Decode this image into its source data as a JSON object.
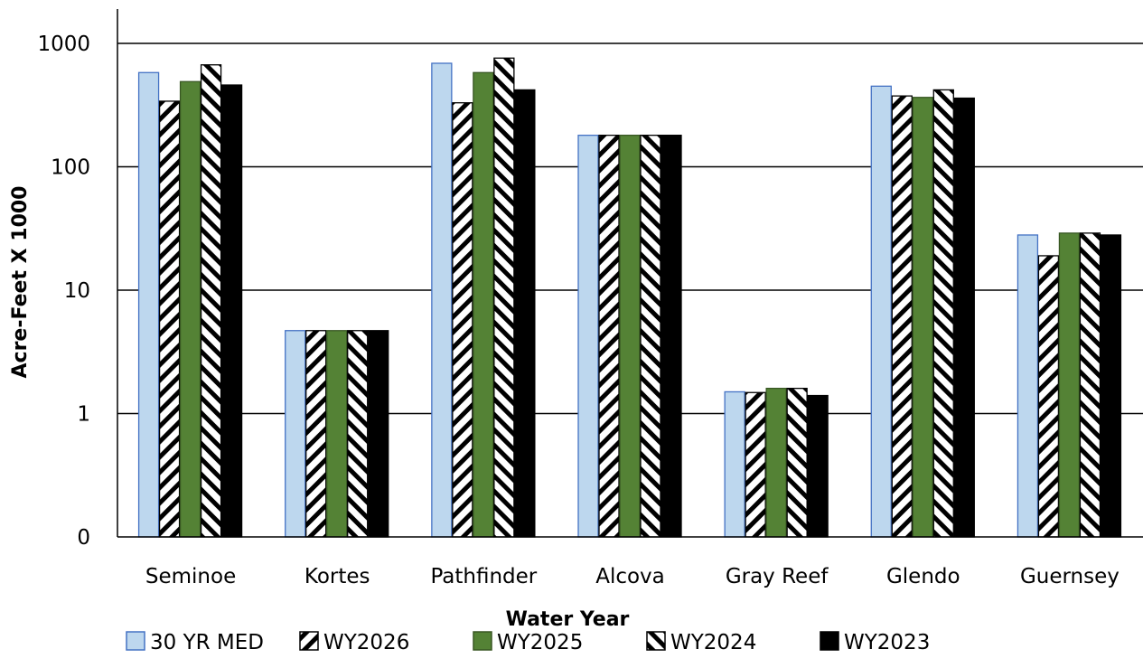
{
  "chart_data": {
    "type": "bar",
    "title": "",
    "xlabel": "Water Year",
    "ylabel": "Acre-Feet X 1000",
    "yscale": "log",
    "ylim": [
      0.1,
      2000
    ],
    "grid": true,
    "legend_position": "bottom",
    "yticks": [
      {
        "value": 0.1,
        "label": "0"
      },
      {
        "value": 1,
        "label": "1"
      },
      {
        "value": 10,
        "label": "10"
      },
      {
        "value": 100,
        "label": "100"
      },
      {
        "value": 1000,
        "label": "1000"
      }
    ],
    "categories": [
      "Seminoe",
      "Kortes",
      "Pathfinder",
      "Alcova",
      "Gray Reef",
      "Glendo",
      "Guernsey"
    ],
    "series": [
      {
        "name": "30 YR MED",
        "style": "solid",
        "fill": "#bdd7ee",
        "stroke": "#4472c4",
        "values": [
          580,
          4.7,
          690,
          180,
          1.5,
          450,
          28
        ]
      },
      {
        "name": "WY2026",
        "style": "hatch-forward",
        "fill": "#ffffff",
        "stroke": "#000000",
        "values": [
          340,
          4.7,
          330,
          180,
          1.48,
          375,
          19
        ]
      },
      {
        "name": "WY2025",
        "style": "solid",
        "fill": "#548235",
        "stroke": "#385723",
        "values": [
          490,
          4.7,
          580,
          180,
          1.6,
          365,
          29
        ]
      },
      {
        "name": "WY2024",
        "style": "hatch-back",
        "fill": "#ffffff",
        "stroke": "#000000",
        "values": [
          670,
          4.7,
          760,
          180,
          1.6,
          420,
          29
        ]
      },
      {
        "name": "WY2023",
        "style": "solid",
        "fill": "#000000",
        "stroke": "#000000",
        "values": [
          460,
          4.7,
          420,
          180,
          1.4,
          360,
          28
        ]
      }
    ]
  }
}
